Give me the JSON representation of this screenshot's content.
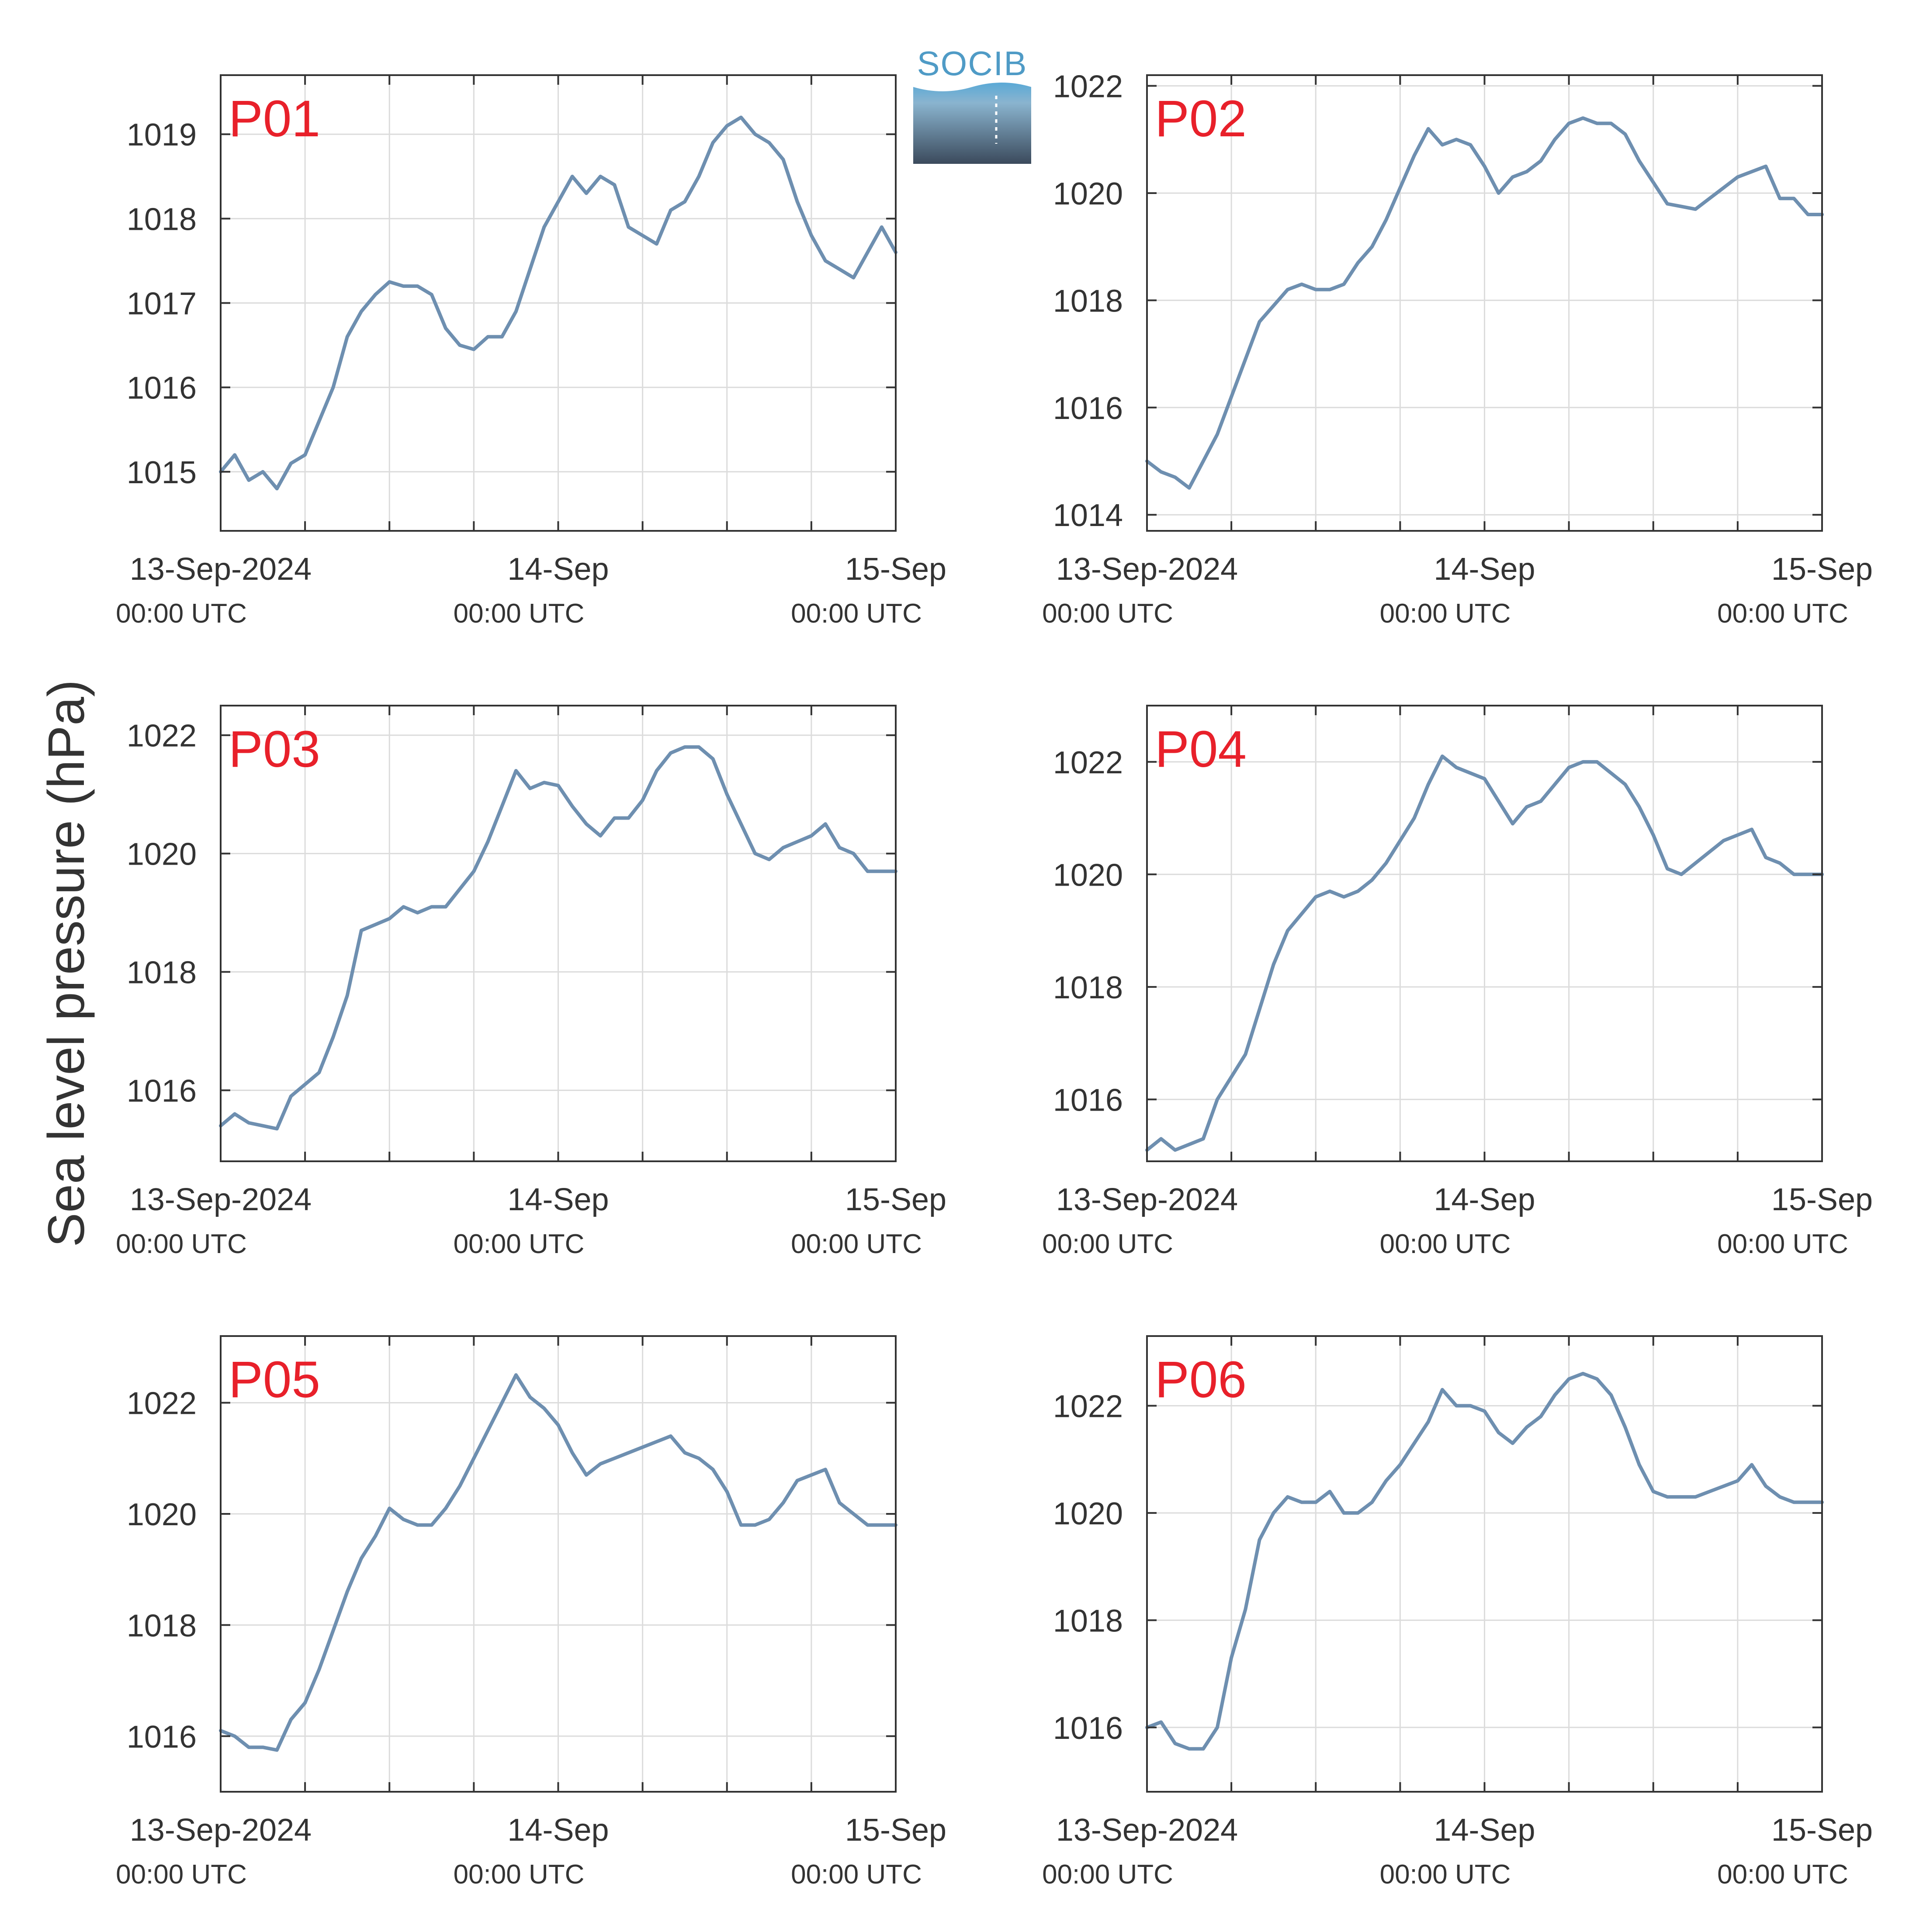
{
  "figure": {
    "ylabel": "Sea level pressure (hPa)",
    "logo_text": "SOCIB",
    "colors": {
      "line": "#6e8fb0",
      "panel_label": "#e8202a",
      "grid": "#dcdcdc",
      "axis": "#333333",
      "text": "#333333"
    }
  },
  "chart_data": [
    {
      "type": "line",
      "name": "P01",
      "title": "P01",
      "xlabel": "",
      "ylabel": "Sea level pressure (hPa)",
      "xlim": [
        "2024-09-13 00:00",
        "2024-09-15 00:00"
      ],
      "ylim": [
        1014.3,
        1019.7
      ],
      "yticks": [
        1015,
        1016,
        1017,
        1018,
        1019
      ],
      "xticks": [
        {
          "label": "13-Sep-2024",
          "sublabel": "00:00 UTC"
        },
        {
          "label": "14-Sep",
          "sublabel": "00:00 UTC"
        },
        {
          "label": "15-Sep",
          "sublabel": "00:00 UTC"
        }
      ],
      "grid": true,
      "x": [
        "2024-09-13 00:00",
        "2024-09-13 01:00",
        "2024-09-13 02:00",
        "2024-09-13 03:00",
        "2024-09-13 04:00",
        "2024-09-13 05:00",
        "2024-09-13 06:00",
        "2024-09-13 07:00",
        "2024-09-13 08:00",
        "2024-09-13 09:00",
        "2024-09-13 10:00",
        "2024-09-13 11:00",
        "2024-09-13 12:00",
        "2024-09-13 13:00",
        "2024-09-13 14:00",
        "2024-09-13 15:00",
        "2024-09-13 16:00",
        "2024-09-13 17:00",
        "2024-09-13 18:00",
        "2024-09-13 19:00",
        "2024-09-13 20:00",
        "2024-09-13 21:00",
        "2024-09-13 22:00",
        "2024-09-13 23:00",
        "2024-09-14 00:00",
        "2024-09-14 01:00",
        "2024-09-14 02:00",
        "2024-09-14 03:00",
        "2024-09-14 04:00",
        "2024-09-14 05:00",
        "2024-09-14 06:00",
        "2024-09-14 07:00",
        "2024-09-14 08:00",
        "2024-09-14 09:00",
        "2024-09-14 10:00",
        "2024-09-14 11:00",
        "2024-09-14 12:00",
        "2024-09-14 13:00",
        "2024-09-14 14:00",
        "2024-09-14 15:00",
        "2024-09-14 16:00",
        "2024-09-14 17:00",
        "2024-09-14 18:00",
        "2024-09-14 19:00",
        "2024-09-14 20:00",
        "2024-09-14 21:00",
        "2024-09-14 22:00",
        "2024-09-14 23:00",
        "2024-09-15 00:00"
      ],
      "values": [
        1015.0,
        1015.2,
        1014.9,
        1015.0,
        1014.8,
        1015.1,
        1015.2,
        1015.6,
        1016.0,
        1016.6,
        1016.9,
        1017.1,
        1017.25,
        1017.2,
        1017.2,
        1017.1,
        1016.7,
        1016.5,
        1016.45,
        1016.6,
        1016.6,
        1016.9,
        1017.4,
        1017.9,
        1018.2,
        1018.5,
        1018.3,
        1018.5,
        1018.4,
        1017.9,
        1017.8,
        1017.7,
        1018.1,
        1018.2,
        1018.5,
        1018.9,
        1019.1,
        1019.2,
        1019.0,
        1018.9,
        1018.7,
        1018.2,
        1017.8,
        1017.5,
        1017.4,
        1017.3,
        1017.6,
        1017.9,
        1017.6
      ]
    },
    {
      "type": "line",
      "name": "P02",
      "title": "P02",
      "xlabel": "",
      "ylabel": "Sea level pressure (hPa)",
      "xlim": [
        "2024-09-13 00:00",
        "2024-09-15 00:00"
      ],
      "ylim": [
        1013.7,
        1022.2
      ],
      "yticks": [
        1014,
        1016,
        1018,
        1020,
        1022
      ],
      "xticks": [
        {
          "label": "13-Sep-2024",
          "sublabel": "00:00 UTC"
        },
        {
          "label": "14-Sep",
          "sublabel": "00:00 UTC"
        },
        {
          "label": "15-Sep",
          "sublabel": "00:00 UTC"
        }
      ],
      "grid": true,
      "x": [
        "2024-09-13 00:00",
        "2024-09-13 01:00",
        "2024-09-13 02:00",
        "2024-09-13 03:00",
        "2024-09-13 04:00",
        "2024-09-13 05:00",
        "2024-09-13 06:00",
        "2024-09-13 07:00",
        "2024-09-13 08:00",
        "2024-09-13 09:00",
        "2024-09-13 10:00",
        "2024-09-13 11:00",
        "2024-09-13 12:00",
        "2024-09-13 13:00",
        "2024-09-13 14:00",
        "2024-09-13 15:00",
        "2024-09-13 16:00",
        "2024-09-13 17:00",
        "2024-09-13 18:00",
        "2024-09-13 19:00",
        "2024-09-13 20:00",
        "2024-09-13 21:00",
        "2024-09-13 22:00",
        "2024-09-13 23:00",
        "2024-09-14 00:00",
        "2024-09-14 01:00",
        "2024-09-14 02:00",
        "2024-09-14 03:00",
        "2024-09-14 04:00",
        "2024-09-14 05:00",
        "2024-09-14 06:00",
        "2024-09-14 07:00",
        "2024-09-14 08:00",
        "2024-09-14 09:00",
        "2024-09-14 10:00",
        "2024-09-14 11:00",
        "2024-09-14 12:00",
        "2024-09-14 13:00",
        "2024-09-14 14:00",
        "2024-09-14 15:00",
        "2024-09-14 16:00",
        "2024-09-14 17:00",
        "2024-09-14 18:00",
        "2024-09-14 19:00",
        "2024-09-14 20:00",
        "2024-09-14 21:00",
        "2024-09-14 22:00",
        "2024-09-14 23:00",
        "2024-09-15 00:00"
      ],
      "values": [
        1015.0,
        1014.8,
        1014.7,
        1014.5,
        1015.0,
        1015.5,
        1016.2,
        1016.9,
        1017.6,
        1017.9,
        1018.2,
        1018.3,
        1018.2,
        1018.2,
        1018.3,
        1018.7,
        1019.0,
        1019.5,
        1020.1,
        1020.7,
        1021.2,
        1020.9,
        1021.0,
        1020.9,
        1020.5,
        1020.0,
        1020.3,
        1020.4,
        1020.6,
        1021.0,
        1021.3,
        1021.4,
        1021.3,
        1021.3,
        1021.1,
        1020.6,
        1020.2,
        1019.8,
        1019.75,
        1019.7,
        1019.9,
        1020.1,
        1020.3,
        1020.4,
        1020.5,
        1019.9,
        1019.9,
        1019.6,
        1019.6
      ]
    },
    {
      "type": "line",
      "name": "P03",
      "title": "P03",
      "xlabel": "",
      "ylabel": "Sea level pressure (hPa)",
      "xlim": [
        "2024-09-13 00:00",
        "2024-09-15 00:00"
      ],
      "ylim": [
        1014.8,
        1022.5
      ],
      "yticks": [
        1016,
        1018,
        1020,
        1022
      ],
      "xticks": [
        {
          "label": "13-Sep-2024",
          "sublabel": "00:00 UTC"
        },
        {
          "label": "14-Sep",
          "sublabel": "00:00 UTC"
        },
        {
          "label": "15-Sep",
          "sublabel": "00:00 UTC"
        }
      ],
      "grid": true,
      "x": [
        "2024-09-13 00:00",
        "2024-09-13 01:00",
        "2024-09-13 02:00",
        "2024-09-13 03:00",
        "2024-09-13 04:00",
        "2024-09-13 05:00",
        "2024-09-13 06:00",
        "2024-09-13 07:00",
        "2024-09-13 08:00",
        "2024-09-13 09:00",
        "2024-09-13 10:00",
        "2024-09-13 11:00",
        "2024-09-13 12:00",
        "2024-09-13 13:00",
        "2024-09-13 14:00",
        "2024-09-13 15:00",
        "2024-09-13 16:00",
        "2024-09-13 17:00",
        "2024-09-13 18:00",
        "2024-09-13 19:00",
        "2024-09-13 20:00",
        "2024-09-13 21:00",
        "2024-09-13 22:00",
        "2024-09-13 23:00",
        "2024-09-14 00:00",
        "2024-09-14 01:00",
        "2024-09-14 02:00",
        "2024-09-14 03:00",
        "2024-09-14 04:00",
        "2024-09-14 05:00",
        "2024-09-14 06:00",
        "2024-09-14 07:00",
        "2024-09-14 08:00",
        "2024-09-14 09:00",
        "2024-09-14 10:00",
        "2024-09-14 11:00",
        "2024-09-14 12:00",
        "2024-09-14 13:00",
        "2024-09-14 14:00",
        "2024-09-14 15:00",
        "2024-09-14 16:00",
        "2024-09-14 17:00",
        "2024-09-14 18:00",
        "2024-09-14 19:00",
        "2024-09-14 20:00",
        "2024-09-14 21:00",
        "2024-09-14 22:00",
        "2024-09-14 23:00",
        "2024-09-15 00:00"
      ],
      "values": [
        1015.4,
        1015.6,
        1015.45,
        1015.4,
        1015.35,
        1015.9,
        1016.1,
        1016.3,
        1016.9,
        1017.6,
        1018.7,
        1018.8,
        1018.9,
        1019.1,
        1019.0,
        1019.1,
        1019.1,
        1019.4,
        1019.7,
        1020.2,
        1020.8,
        1021.4,
        1021.1,
        1021.2,
        1021.15,
        1020.8,
        1020.5,
        1020.3,
        1020.6,
        1020.6,
        1020.9,
        1021.4,
        1021.7,
        1021.8,
        1021.8,
        1021.6,
        1021.0,
        1020.5,
        1020.0,
        1019.9,
        1020.1,
        1020.2,
        1020.3,
        1020.5,
        1020.1,
        1020.0,
        1019.7,
        1019.7,
        1019.7
      ]
    },
    {
      "type": "line",
      "name": "P04",
      "title": "P04",
      "xlabel": "",
      "ylabel": "Sea level pressure (hPa)",
      "xlim": [
        "2024-09-13 00:00",
        "2024-09-15 00:00"
      ],
      "ylim": [
        1014.9,
        1023.0
      ],
      "yticks": [
        1016,
        1018,
        1020,
        1022
      ],
      "xticks": [
        {
          "label": "13-Sep-2024",
          "sublabel": "00:00 UTC"
        },
        {
          "label": "14-Sep",
          "sublabel": "00:00 UTC"
        },
        {
          "label": "15-Sep",
          "sublabel": "00:00 UTC"
        }
      ],
      "grid": true,
      "x": [
        "2024-09-13 00:00",
        "2024-09-13 01:00",
        "2024-09-13 02:00",
        "2024-09-13 03:00",
        "2024-09-13 04:00",
        "2024-09-13 05:00",
        "2024-09-13 06:00",
        "2024-09-13 07:00",
        "2024-09-13 08:00",
        "2024-09-13 09:00",
        "2024-09-13 10:00",
        "2024-09-13 11:00",
        "2024-09-13 12:00",
        "2024-09-13 13:00",
        "2024-09-13 14:00",
        "2024-09-13 15:00",
        "2024-09-13 16:00",
        "2024-09-13 17:00",
        "2024-09-13 18:00",
        "2024-09-13 19:00",
        "2024-09-13 20:00",
        "2024-09-13 21:00",
        "2024-09-13 22:00",
        "2024-09-13 23:00",
        "2024-09-14 00:00",
        "2024-09-14 01:00",
        "2024-09-14 02:00",
        "2024-09-14 03:00",
        "2024-09-14 04:00",
        "2024-09-14 05:00",
        "2024-09-14 06:00",
        "2024-09-14 07:00",
        "2024-09-14 08:00",
        "2024-09-14 09:00",
        "2024-09-14 10:00",
        "2024-09-14 11:00",
        "2024-09-14 12:00",
        "2024-09-14 13:00",
        "2024-09-14 14:00",
        "2024-09-14 15:00",
        "2024-09-14 16:00",
        "2024-09-14 17:00",
        "2024-09-14 18:00",
        "2024-09-14 19:00",
        "2024-09-14 20:00",
        "2024-09-14 21:00",
        "2024-09-14 22:00",
        "2024-09-14 23:00",
        "2024-09-15 00:00"
      ],
      "values": [
        1015.1,
        1015.3,
        1015.1,
        1015.2,
        1015.3,
        1016.0,
        1016.4,
        1016.8,
        1017.6,
        1018.4,
        1019.0,
        1019.3,
        1019.6,
        1019.7,
        1019.6,
        1019.7,
        1019.9,
        1020.2,
        1020.6,
        1021.0,
        1021.6,
        1022.1,
        1021.9,
        1021.8,
        1021.7,
        1021.3,
        1020.9,
        1021.2,
        1021.3,
        1021.6,
        1021.9,
        1022.0,
        1022.0,
        1021.8,
        1021.6,
        1021.2,
        1020.7,
        1020.1,
        1020.0,
        1020.2,
        1020.4,
        1020.6,
        1020.7,
        1020.8,
        1020.3,
        1020.2,
        1020.0,
        1020.0,
        1020.0
      ]
    },
    {
      "type": "line",
      "name": "P05",
      "title": "P05",
      "xlabel": "",
      "ylabel": "Sea level pressure (hPa)",
      "xlim": [
        "2024-09-13 00:00",
        "2024-09-15 00:00"
      ],
      "ylim": [
        1015.0,
        1023.2
      ],
      "yticks": [
        1016,
        1018,
        1020,
        1022
      ],
      "xticks": [
        {
          "label": "13-Sep-2024",
          "sublabel": "00:00 UTC"
        },
        {
          "label": "14-Sep",
          "sublabel": "00:00 UTC"
        },
        {
          "label": "15-Sep",
          "sublabel": "00:00 UTC"
        }
      ],
      "grid": true,
      "x": [
        "2024-09-13 00:00",
        "2024-09-13 01:00",
        "2024-09-13 02:00",
        "2024-09-13 03:00",
        "2024-09-13 04:00",
        "2024-09-13 05:00",
        "2024-09-13 06:00",
        "2024-09-13 07:00",
        "2024-09-13 08:00",
        "2024-09-13 09:00",
        "2024-09-13 10:00",
        "2024-09-13 11:00",
        "2024-09-13 12:00",
        "2024-09-13 13:00",
        "2024-09-13 14:00",
        "2024-09-13 15:00",
        "2024-09-13 16:00",
        "2024-09-13 17:00",
        "2024-09-13 18:00",
        "2024-09-13 19:00",
        "2024-09-13 20:00",
        "2024-09-13 21:00",
        "2024-09-13 22:00",
        "2024-09-13 23:00",
        "2024-09-14 00:00",
        "2024-09-14 01:00",
        "2024-09-14 02:00",
        "2024-09-14 03:00",
        "2024-09-14 04:00",
        "2024-09-14 05:00",
        "2024-09-14 06:00",
        "2024-09-14 07:00",
        "2024-09-14 08:00",
        "2024-09-14 09:00",
        "2024-09-14 10:00",
        "2024-09-14 11:00",
        "2024-09-14 12:00",
        "2024-09-14 13:00",
        "2024-09-14 14:00",
        "2024-09-14 15:00",
        "2024-09-14 16:00",
        "2024-09-14 17:00",
        "2024-09-14 18:00",
        "2024-09-14 19:00",
        "2024-09-14 20:00",
        "2024-09-14 21:00",
        "2024-09-14 22:00",
        "2024-09-14 23:00",
        "2024-09-15 00:00"
      ],
      "values": [
        1016.1,
        1016.0,
        1015.8,
        1015.8,
        1015.75,
        1016.3,
        1016.6,
        1017.2,
        1017.9,
        1018.6,
        1019.2,
        1019.6,
        1020.1,
        1019.9,
        1019.8,
        1019.8,
        1020.1,
        1020.5,
        1021.0,
        1021.5,
        1022.0,
        1022.5,
        1022.1,
        1021.9,
        1021.6,
        1021.1,
        1020.7,
        1020.9,
        1021.0,
        1021.1,
        1021.2,
        1021.3,
        1021.4,
        1021.1,
        1021.0,
        1020.8,
        1020.4,
        1019.8,
        1019.8,
        1019.9,
        1020.2,
        1020.6,
        1020.7,
        1020.8,
        1020.2,
        1020.0,
        1019.8,
        1019.8,
        1019.8
      ]
    },
    {
      "type": "line",
      "name": "P06",
      "title": "P06",
      "xlabel": "",
      "ylabel": "Sea level pressure (hPa)",
      "xlim": [
        "2024-09-13 00:00",
        "2024-09-15 00:00"
      ],
      "ylim": [
        1014.8,
        1023.3
      ],
      "yticks": [
        1016,
        1018,
        1020,
        1022
      ],
      "xticks": [
        {
          "label": "13-Sep-2024",
          "sublabel": "00:00 UTC"
        },
        {
          "label": "14-Sep",
          "sublabel": "00:00 UTC"
        },
        {
          "label": "15-Sep",
          "sublabel": "00:00 UTC"
        }
      ],
      "grid": true,
      "x": [
        "2024-09-13 00:00",
        "2024-09-13 01:00",
        "2024-09-13 02:00",
        "2024-09-13 03:00",
        "2024-09-13 04:00",
        "2024-09-13 05:00",
        "2024-09-13 06:00",
        "2024-09-13 07:00",
        "2024-09-13 08:00",
        "2024-09-13 09:00",
        "2024-09-13 10:00",
        "2024-09-13 11:00",
        "2024-09-13 12:00",
        "2024-09-13 13:00",
        "2024-09-13 14:00",
        "2024-09-13 15:00",
        "2024-09-13 16:00",
        "2024-09-13 17:00",
        "2024-09-13 18:00",
        "2024-09-13 19:00",
        "2024-09-13 20:00",
        "2024-09-13 21:00",
        "2024-09-13 22:00",
        "2024-09-13 23:00",
        "2024-09-14 00:00",
        "2024-09-14 01:00",
        "2024-09-14 02:00",
        "2024-09-14 03:00",
        "2024-09-14 04:00",
        "2024-09-14 05:00",
        "2024-09-14 06:00",
        "2024-09-14 07:00",
        "2024-09-14 08:00",
        "2024-09-14 09:00",
        "2024-09-14 10:00",
        "2024-09-14 11:00",
        "2024-09-14 12:00",
        "2024-09-14 13:00",
        "2024-09-14 14:00",
        "2024-09-14 15:00",
        "2024-09-14 16:00",
        "2024-09-14 17:00",
        "2024-09-14 18:00",
        "2024-09-14 19:00",
        "2024-09-14 20:00",
        "2024-09-14 21:00",
        "2024-09-14 22:00",
        "2024-09-14 23:00",
        "2024-09-15 00:00"
      ],
      "values": [
        1016.0,
        1016.1,
        1015.7,
        1015.6,
        1015.6,
        1016.0,
        1017.3,
        1018.2,
        1019.5,
        1020.0,
        1020.3,
        1020.2,
        1020.2,
        1020.4,
        1020.0,
        1020.0,
        1020.2,
        1020.6,
        1020.9,
        1021.3,
        1021.7,
        1022.3,
        1022.0,
        1022.0,
        1021.9,
        1021.5,
        1021.3,
        1021.6,
        1021.8,
        1022.2,
        1022.5,
        1022.6,
        1022.5,
        1022.2,
        1021.6,
        1020.9,
        1020.4,
        1020.3,
        1020.3,
        1020.3,
        1020.4,
        1020.5,
        1020.6,
        1020.9,
        1020.5,
        1020.3,
        1020.2,
        1020.2,
        1020.2
      ]
    }
  ]
}
